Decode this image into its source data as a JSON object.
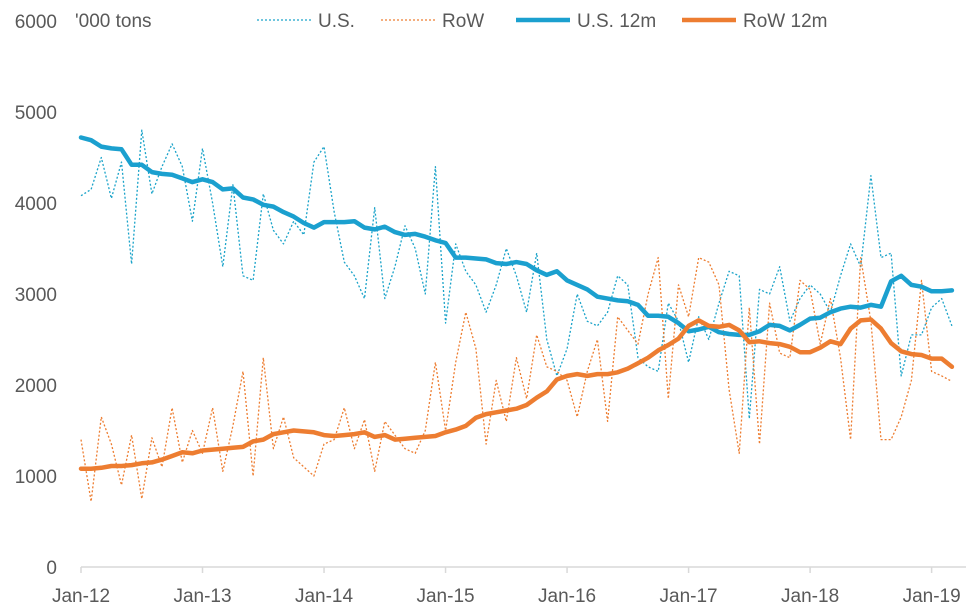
{
  "chart_data": {
    "type": "line",
    "title": "",
    "units_label": "'000 tons",
    "xlabel": "",
    "ylabel": "",
    "ylim": [
      0,
      6000
    ],
    "yticks": [
      0,
      1000,
      2000,
      3000,
      4000,
      5000,
      6000
    ],
    "xlim": [
      0,
      87
    ],
    "xticks": [
      {
        "label": "Jan-12",
        "index": 0
      },
      {
        "label": "Jan-13",
        "index": 12
      },
      {
        "label": "Jan-14",
        "index": 24
      },
      {
        "label": "Jan-15",
        "index": 36
      },
      {
        "label": "Jan-16",
        "index": 48
      },
      {
        "label": "Jan-17",
        "index": 60
      },
      {
        "label": "Jan-18",
        "index": 72
      },
      {
        "label": "Jan-19",
        "index": 84
      }
    ],
    "grid": false,
    "legend_position": "top",
    "series": [
      {
        "name": "U.S.",
        "color": "#1aa3c9",
        "style": "dotted",
        "values": [
          4080,
          4150,
          4500,
          4050,
          4450,
          3330,
          4800,
          4100,
          4400,
          4650,
          4400,
          3800,
          4600,
          4000,
          3300,
          4200,
          3200,
          3150,
          4100,
          3700,
          3550,
          3800,
          3650,
          4450,
          4620,
          3900,
          3350,
          3200,
          2950,
          3950,
          2950,
          3300,
          3750,
          3500,
          3000,
          4400,
          2680,
          3550,
          3250,
          3100,
          2800,
          3100,
          3500,
          3200,
          2800,
          3450,
          2500,
          2100,
          2400,
          3000,
          2700,
          2650,
          2800,
          3200,
          3100,
          2300,
          2200,
          2150,
          2900,
          2700,
          2250,
          2750,
          2500,
          2900,
          3250,
          3200,
          1630,
          3050,
          3000,
          3300,
          2700,
          2950,
          3100,
          3000,
          2800,
          3200,
          3550,
          3300,
          4300,
          3400,
          3450,
          2100,
          2550,
          2550,
          2850,
          2950,
          2650
        ]
      },
      {
        "name": "RoW",
        "color": "#ed7d31",
        "style": "dotted",
        "values": [
          1400,
          720,
          1650,
          1350,
          900,
          1450,
          750,
          1420,
          1100,
          1750,
          1150,
          1500,
          1250,
          1750,
          1050,
          1550,
          2150,
          1000,
          2300,
          1300,
          1650,
          1200,
          1100,
          1000,
          1350,
          1400,
          1750,
          1300,
          1620,
          1050,
          1600,
          1450,
          1300,
          1250,
          1500,
          2250,
          1500,
          2250,
          2800,
          2400,
          1350,
          2050,
          1600,
          2300,
          1850,
          2550,
          2200,
          2150,
          2050,
          1650,
          2150,
          2500,
          1600,
          2750,
          2600,
          2450,
          3000,
          3400,
          1850,
          3100,
          2750,
          3400,
          3350,
          3100,
          1950,
          1250,
          2850,
          1350,
          2900,
          2350,
          2300,
          3150,
          3050,
          2450,
          2950,
          2300,
          1400,
          3400,
          2700,
          1400,
          1400,
          1650,
          2050,
          3150,
          2150,
          2100,
          2040
        ]
      },
      {
        "name": "U.S. 12m",
        "color": "#1ba0cf",
        "style": "solid",
        "values": [
          4720,
          4690,
          4620,
          4600,
          4590,
          4420,
          4420,
          4340,
          4320,
          4310,
          4270,
          4230,
          4260,
          4230,
          4150,
          4160,
          4060,
          4040,
          3980,
          3960,
          3900,
          3850,
          3780,
          3730,
          3790,
          3790,
          3790,
          3800,
          3730,
          3710,
          3740,
          3680,
          3650,
          3660,
          3630,
          3590,
          3560,
          3400,
          3400,
          3390,
          3380,
          3340,
          3330,
          3350,
          3330,
          3260,
          3210,
          3250,
          3150,
          3100,
          3050,
          2970,
          2950,
          2930,
          2920,
          2880,
          2760,
          2760,
          2750,
          2680,
          2590,
          2610,
          2640,
          2580,
          2560,
          2550,
          2550,
          2590,
          2660,
          2650,
          2600,
          2660,
          2730,
          2740,
          2800,
          2840,
          2860,
          2850,
          2880,
          2860,
          3140,
          3200,
          3100,
          3080,
          3030,
          3030,
          3040
        ]
      },
      {
        "name": "RoW 12m",
        "color": "#ed7d31",
        "style": "solid",
        "values": [
          1080,
          1080,
          1090,
          1110,
          1110,
          1120,
          1140,
          1150,
          1180,
          1220,
          1260,
          1250,
          1280,
          1290,
          1300,
          1310,
          1320,
          1380,
          1400,
          1460,
          1480,
          1500,
          1490,
          1480,
          1450,
          1440,
          1450,
          1460,
          1480,
          1430,
          1450,
          1400,
          1410,
          1420,
          1430,
          1440,
          1480,
          1510,
          1550,
          1640,
          1680,
          1700,
          1720,
          1740,
          1780,
          1860,
          1930,
          2060,
          2100,
          2120,
          2100,
          2120,
          2120,
          2140,
          2180,
          2240,
          2300,
          2380,
          2440,
          2510,
          2650,
          2710,
          2650,
          2640,
          2660,
          2600,
          2470,
          2480,
          2460,
          2450,
          2420,
          2360,
          2360,
          2410,
          2480,
          2450,
          2620,
          2710,
          2720,
          2620,
          2460,
          2370,
          2340,
          2330,
          2290,
          2290,
          2200
        ]
      }
    ]
  }
}
